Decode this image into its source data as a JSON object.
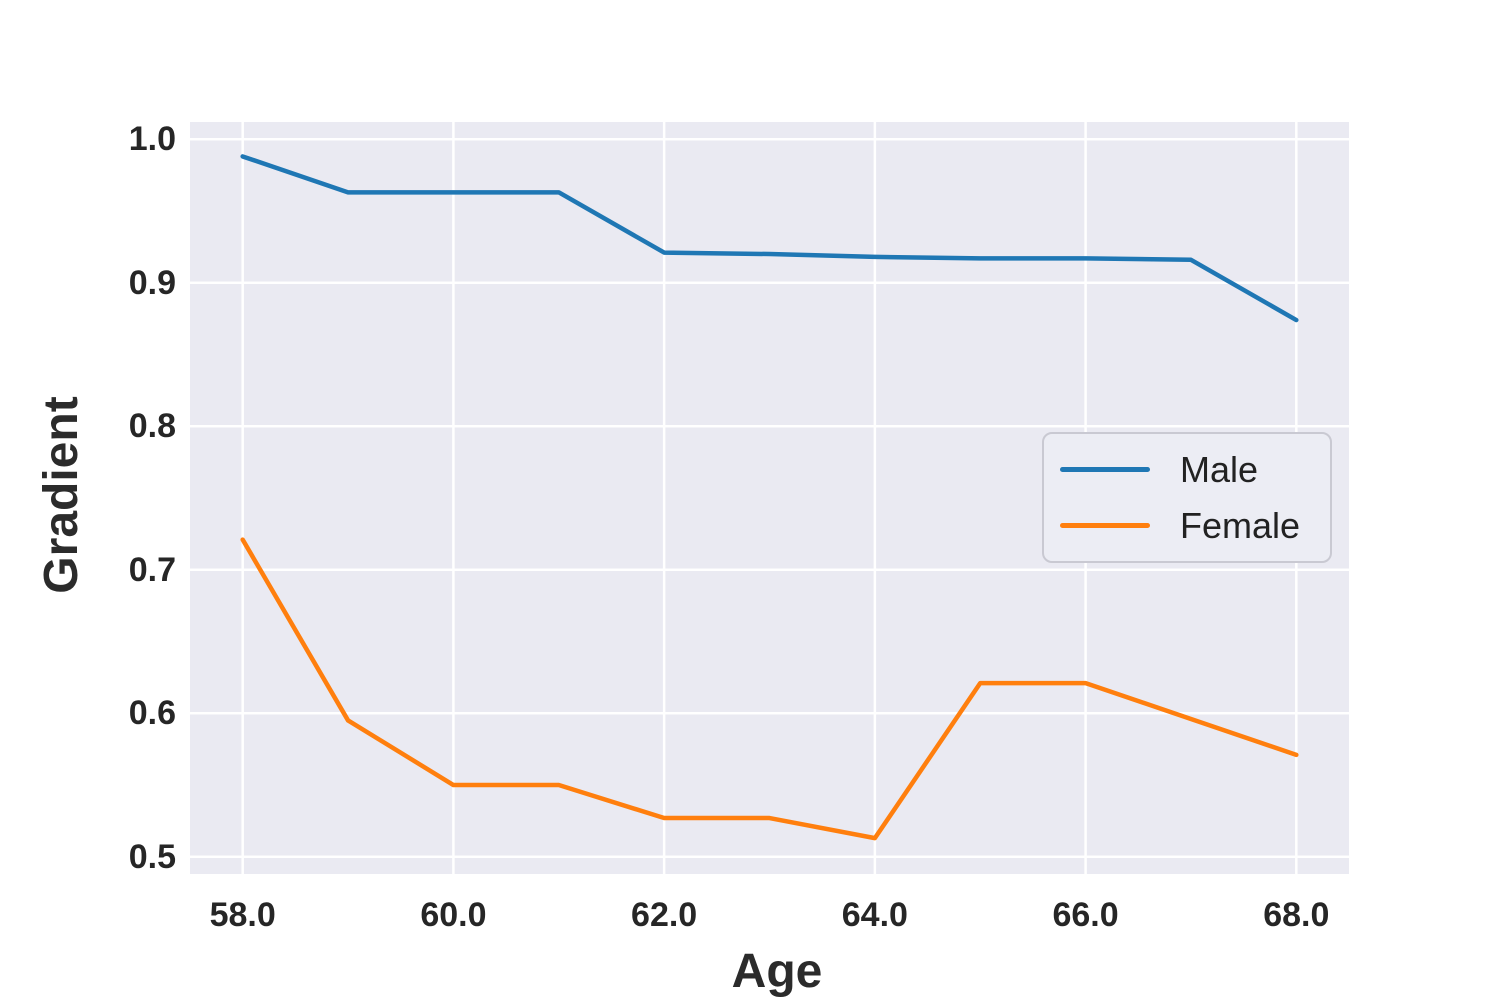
{
  "figure": {
    "background_color": "#ffffff",
    "plot_background_color": "#eaeaf2",
    "gridline_color": "#ffffff",
    "tick_text_color": "#262626",
    "label_text_color": "#2b2b2b"
  },
  "axes": {
    "x_label": "Age",
    "y_label": "Gradient",
    "x_tick_labels": [
      "58.0",
      "60.0",
      "62.0",
      "64.0",
      "66.0",
      "68.0"
    ],
    "y_tick_labels": [
      "0.5",
      "0.6",
      "0.7",
      "0.8",
      "0.9",
      "1.0"
    ]
  },
  "legend": {
    "entries": [
      {
        "label": "Male",
        "color": "#1f77b4"
      },
      {
        "label": "Female",
        "color": "#ff7f0e"
      }
    ]
  },
  "chart_data": {
    "type": "line",
    "title": "",
    "xlabel": "Age",
    "ylabel": "Gradient",
    "x": [
      58,
      59,
      60,
      61,
      62,
      63,
      64,
      65,
      66,
      67,
      68
    ],
    "series": [
      {
        "name": "Male",
        "color": "#1f77b4",
        "values": [
          0.988,
          0.963,
          0.963,
          0.963,
          0.921,
          0.92,
          0.918,
          0.917,
          0.917,
          0.916,
          0.874
        ]
      },
      {
        "name": "Female",
        "color": "#ff7f0e",
        "values": [
          0.721,
          0.595,
          0.55,
          0.55,
          0.527,
          0.527,
          0.513,
          0.621,
          0.621,
          0.596,
          0.571
        ]
      }
    ],
    "x_ticks": [
      58,
      60,
      62,
      64,
      66,
      68
    ],
    "y_ticks": [
      0.5,
      0.6,
      0.7,
      0.8,
      0.9,
      1.0
    ],
    "xlim": [
      57.5,
      68.5
    ],
    "ylim": [
      0.488,
      1.012
    ],
    "grid": true,
    "legend_position": "center right"
  }
}
